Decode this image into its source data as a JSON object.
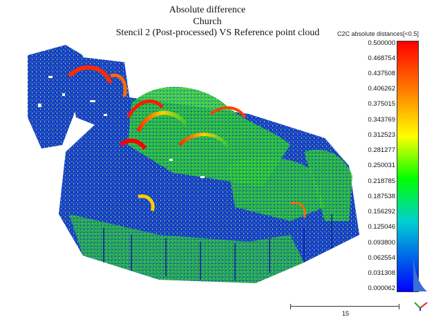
{
  "header": {
    "line1": "Absolute difference",
    "line2": "Church",
    "subtitle": "Stencil 2 (Post-processed)  VS Reference point cloud"
  },
  "colorbar": {
    "title": "C2C absolute distances[<0.5]",
    "ticks": [
      "0.500000",
      "0.468754",
      "0.437508",
      "0.406262",
      "0.375015",
      "0.343769",
      "0.312523",
      "0.281277",
      "0.250031",
      "0.218785",
      "0.187538",
      "0.156292",
      "0.125046",
      "0.093800",
      "0.062554",
      "0.031308",
      "0.000062"
    ],
    "colors": [
      "#ff0000",
      "#ff8000",
      "#ffff00",
      "#00ff00",
      "#0000ff"
    ]
  },
  "scalebar": {
    "label": "15"
  }
}
